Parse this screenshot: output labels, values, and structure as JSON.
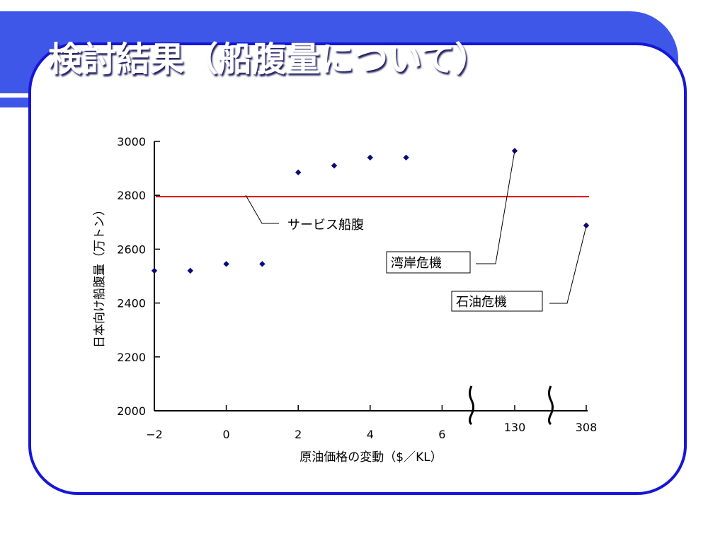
{
  "slide": {
    "title": "検討結果（船腹量について）",
    "colors": {
      "banner": "#3f57e8",
      "frame": "#1616d8",
      "marker": "#0a0a7a",
      "line": "#e00000"
    }
  },
  "chart_data": {
    "type": "scatter",
    "title": "",
    "xlabel": "原油価格の変動（$／KL）",
    "ylabel": "日本向け船腹量（万トン）",
    "ylim": [
      2000,
      3000
    ],
    "yticks": [
      3000,
      2800,
      2600,
      2400,
      2200,
      2000
    ],
    "xticks": [
      "−2",
      "0",
      "2",
      "4",
      "6",
      "130",
      "308"
    ],
    "axis_breaks": [
      "between 6 and 130",
      "between 130 and 308"
    ],
    "grid": false,
    "series": [
      {
        "name": "",
        "points": [
          {
            "x": -2,
            "y": 2520
          },
          {
            "x": -1,
            "y": 2520
          },
          {
            "x": 0,
            "y": 2545
          },
          {
            "x": 1,
            "y": 2545
          },
          {
            "x": 2,
            "y": 2885
          },
          {
            "x": 3,
            "y": 2910
          },
          {
            "x": 4,
            "y": 2940
          },
          {
            "x": 5,
            "y": 2940
          },
          {
            "x": 130,
            "y": 2965
          },
          {
            "x": 308,
            "y": 2688
          }
        ]
      }
    ],
    "reference_line": {
      "label": "サービス船腹",
      "y": 2795
    },
    "annotations": [
      {
        "text": "湾岸危機",
        "points_to_x": 130
      },
      {
        "text": "石油危機",
        "points_to_x": 308
      }
    ]
  }
}
